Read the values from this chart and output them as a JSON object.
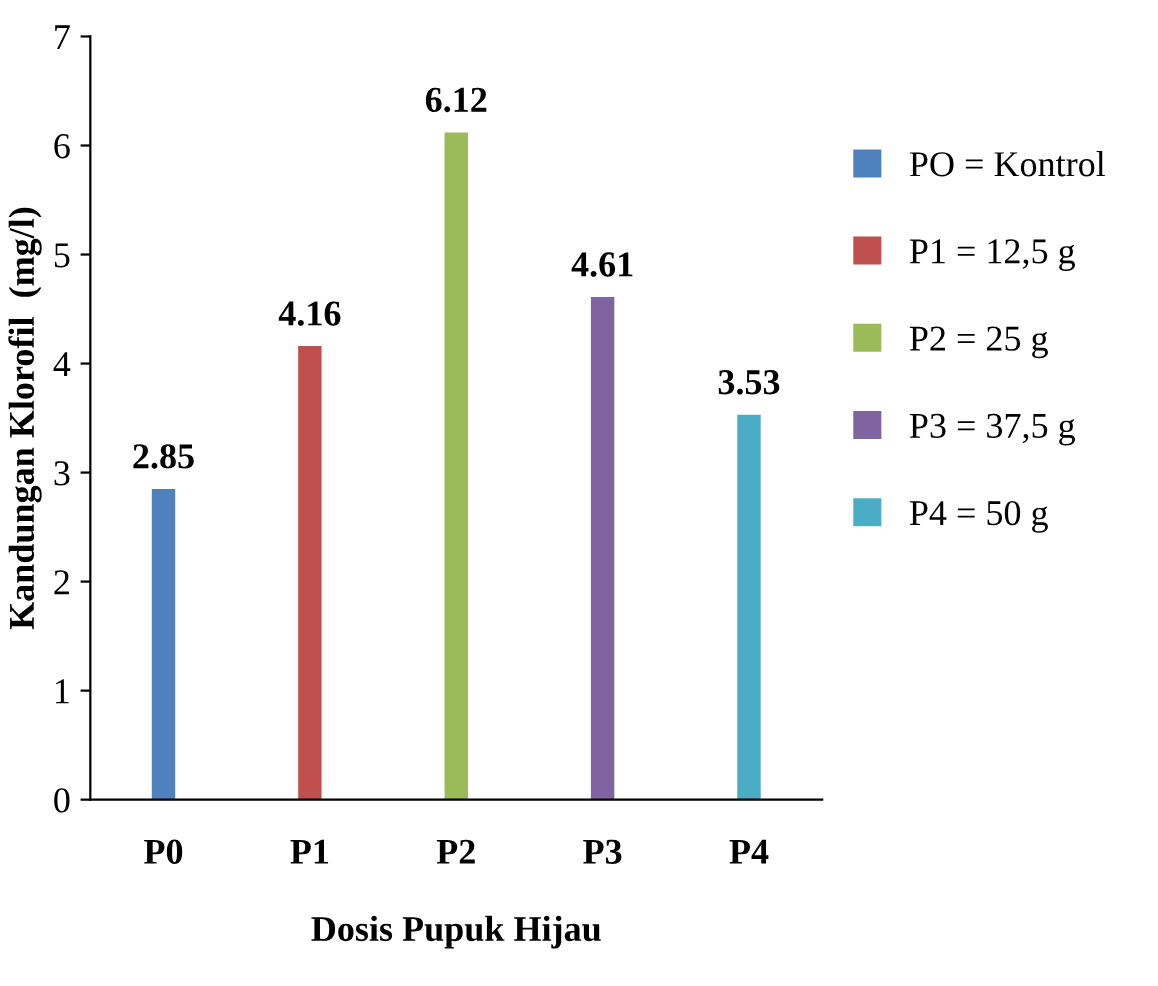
{
  "chart_data": {
    "type": "bar",
    "xlabel": "Dosis Pupuk Hijau",
    "ylabel": "Kandungan Klorofil  (mg/l)",
    "categories": [
      "P0",
      "P1",
      "P2",
      "P3",
      "P4"
    ],
    "series": [
      {
        "name": "PO = Kontrol",
        "color": "#4f81bd",
        "values": [
          2.85,
          null,
          null,
          null,
          null
        ]
      },
      {
        "name": "P1 = 12,5 g",
        "color": "#c0504d",
        "values": [
          null,
          4.16,
          null,
          null,
          null
        ]
      },
      {
        "name": "P2 = 25 g",
        "color": "#9bbb59",
        "values": [
          null,
          null,
          6.12,
          null,
          null
        ]
      },
      {
        "name": "P3 = 37,5 g",
        "color": "#8064a2",
        "values": [
          null,
          null,
          null,
          4.61,
          null
        ]
      },
      {
        "name": "P4 = 50 g",
        "color": "#4bacc6",
        "values": [
          null,
          null,
          null,
          null,
          3.53
        ]
      }
    ],
    "ylim": [
      0,
      7
    ],
    "yticks": [
      0,
      1,
      2,
      3,
      4,
      5,
      6,
      7
    ],
    "grid": false,
    "legend": "right",
    "data_labels": true
  }
}
